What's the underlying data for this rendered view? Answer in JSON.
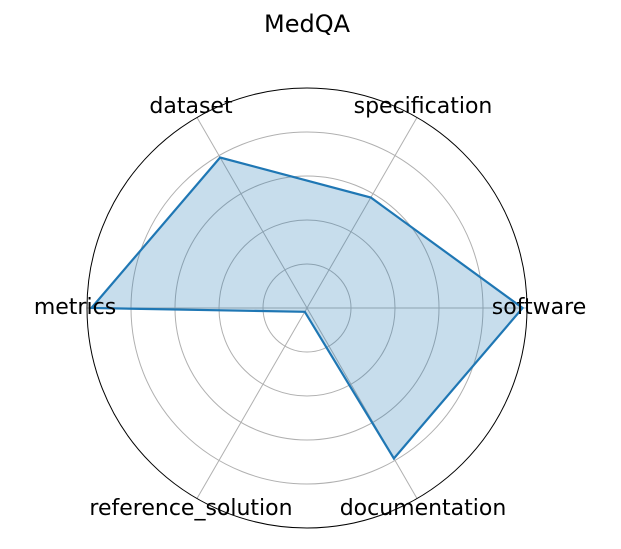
{
  "chart_data": {
    "type": "radar",
    "title": "MedQA",
    "categories": [
      "software",
      "specification",
      "dataset",
      "metrics",
      "reference_solution",
      "documentation"
    ],
    "series": [
      {
        "values": [
          0.98,
          0.58,
          0.79,
          0.98,
          0.02,
          0.79
        ]
      }
    ],
    "rlim": [
      0,
      1
    ],
    "radial_gridlines": [
      0.2,
      0.4,
      0.6,
      0.8
    ],
    "grid": true,
    "colors": {
      "line": "#1f77b4",
      "fill": "#1f77b4",
      "grid": "#b0b0b0",
      "frame": "#000000"
    }
  }
}
